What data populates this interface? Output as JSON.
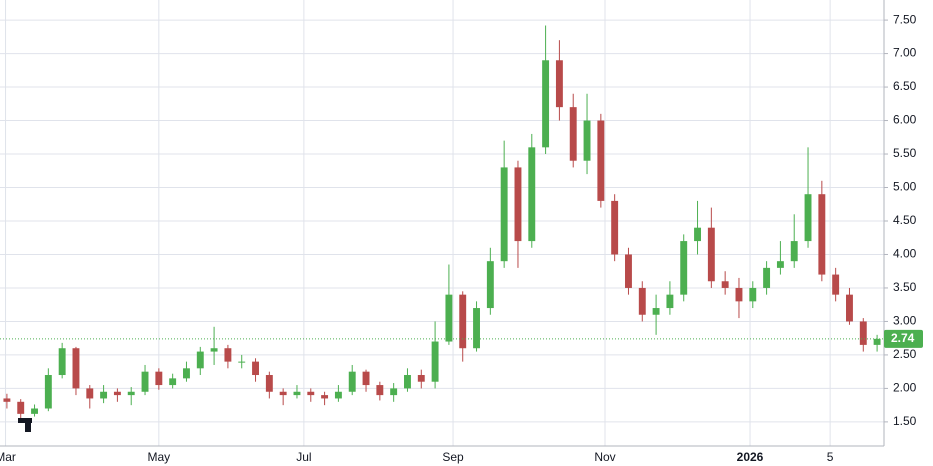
{
  "chart_data": {
    "type": "candlestick",
    "open": [
      1.85,
      1.8,
      1.62,
      1.7,
      2.2,
      2.6,
      2.0,
      1.85,
      1.95,
      1.9,
      1.95,
      2.25,
      2.05,
      2.15,
      2.3,
      2.55,
      2.6,
      2.4,
      2.4,
      2.2,
      1.95,
      1.9,
      1.95,
      1.9,
      1.85,
      1.95,
      2.25,
      2.05,
      1.9,
      2.0,
      2.2,
      2.1,
      2.7,
      3.4,
      2.6,
      3.2,
      3.9,
      5.3,
      4.2,
      5.6,
      6.9,
      6.2,
      5.4,
      6.0,
      4.8,
      4.0,
      3.5,
      3.1,
      3.2,
      3.4,
      4.2,
      4.4,
      3.6,
      3.5,
      3.3,
      3.5,
      3.8,
      3.9,
      4.2,
      4.9,
      3.7,
      3.4,
      3.0,
      2.65
    ],
    "high": [
      1.92,
      1.84,
      1.76,
      2.3,
      2.68,
      2.62,
      2.05,
      2.05,
      2.0,
      2.02,
      2.35,
      2.3,
      2.22,
      2.4,
      2.62,
      2.92,
      2.65,
      2.5,
      2.45,
      2.25,
      2.0,
      2.05,
      2.0,
      1.95,
      2.05,
      2.35,
      2.28,
      2.1,
      2.08,
      2.3,
      2.28,
      3.0,
      3.85,
      3.45,
      3.3,
      4.1,
      5.7,
      5.4,
      5.8,
      7.42,
      7.2,
      6.4,
      6.4,
      6.1,
      4.9,
      4.1,
      3.6,
      3.4,
      3.6,
      4.3,
      4.8,
      4.7,
      3.75,
      3.65,
      3.6,
      3.9,
      4.2,
      4.6,
      5.6,
      5.1,
      3.8,
      3.5,
      3.05,
      2.8
    ],
    "low": [
      1.7,
      1.5,
      1.58,
      1.66,
      2.15,
      1.9,
      1.7,
      1.78,
      1.8,
      1.75,
      1.9,
      1.98,
      2.0,
      2.1,
      2.2,
      2.35,
      2.3,
      2.3,
      2.1,
      1.85,
      1.75,
      1.85,
      1.8,
      1.75,
      1.8,
      1.9,
      1.95,
      1.82,
      1.8,
      1.95,
      2.0,
      2.0,
      2.65,
      2.4,
      2.55,
      3.1,
      3.8,
      3.8,
      4.1,
      5.5,
      6.0,
      5.3,
      5.2,
      4.7,
      3.9,
      3.4,
      3.0,
      2.8,
      3.1,
      3.3,
      4.0,
      3.5,
      3.4,
      3.05,
      3.2,
      3.4,
      3.7,
      3.8,
      4.1,
      3.6,
      3.3,
      2.95,
      2.55,
      2.55
    ],
    "close": [
      1.8,
      1.62,
      1.7,
      2.2,
      2.6,
      2.0,
      1.85,
      1.95,
      1.9,
      1.95,
      2.25,
      2.05,
      2.15,
      2.3,
      2.55,
      2.6,
      2.4,
      2.4,
      2.2,
      1.95,
      1.9,
      1.95,
      1.9,
      1.85,
      1.95,
      2.25,
      2.05,
      1.9,
      2.0,
      2.2,
      2.1,
      2.7,
      3.4,
      2.6,
      3.2,
      3.9,
      5.3,
      4.2,
      5.6,
      6.9,
      6.2,
      5.4,
      6.0,
      4.8,
      4.0,
      3.5,
      3.1,
      3.2,
      3.4,
      4.2,
      4.4,
      3.6,
      3.5,
      3.3,
      3.5,
      3.8,
      3.9,
      4.2,
      4.9,
      3.7,
      3.4,
      3.0,
      2.65,
      2.74
    ],
    "up_color": "#4caf50",
    "down_color": "#b84a4a",
    "last_value": 2.74,
    "xlim": [
      0,
      64
    ],
    "xticks": [
      {
        "value": 0.4,
        "label": "Mar"
      },
      {
        "value": 11.5,
        "label": "May"
      },
      {
        "value": 22,
        "label": "Jul"
      },
      {
        "value": 32.8,
        "label": "Sep"
      },
      {
        "value": 43.8,
        "label": "Nov"
      },
      {
        "value": 54.3,
        "label": "2026"
      },
      {
        "value": 60.1,
        "label": "5"
      }
    ],
    "ylim": [
      1.14,
      7.8
    ],
    "yticks": [
      {
        "value": 1.5,
        "label": "1.50"
      },
      {
        "value": 2,
        "label": "2.00"
      },
      {
        "value": 2.5,
        "label": "2.50"
      },
      {
        "value": 3,
        "label": "3.00"
      },
      {
        "value": 3.5,
        "label": "3.50"
      },
      {
        "value": 4,
        "label": "4.00"
      },
      {
        "value": 4.5,
        "label": "4.50"
      },
      {
        "value": 5,
        "label": "5.00"
      },
      {
        "value": 5.5,
        "label": "5.50"
      },
      {
        "value": 6,
        "label": "6.00"
      },
      {
        "value": 6.5,
        "label": "6.50"
      },
      {
        "value": 7,
        "label": "7.00"
      },
      {
        "value": 7.5,
        "label": "7.50"
      }
    ],
    "grid": true
  }
}
